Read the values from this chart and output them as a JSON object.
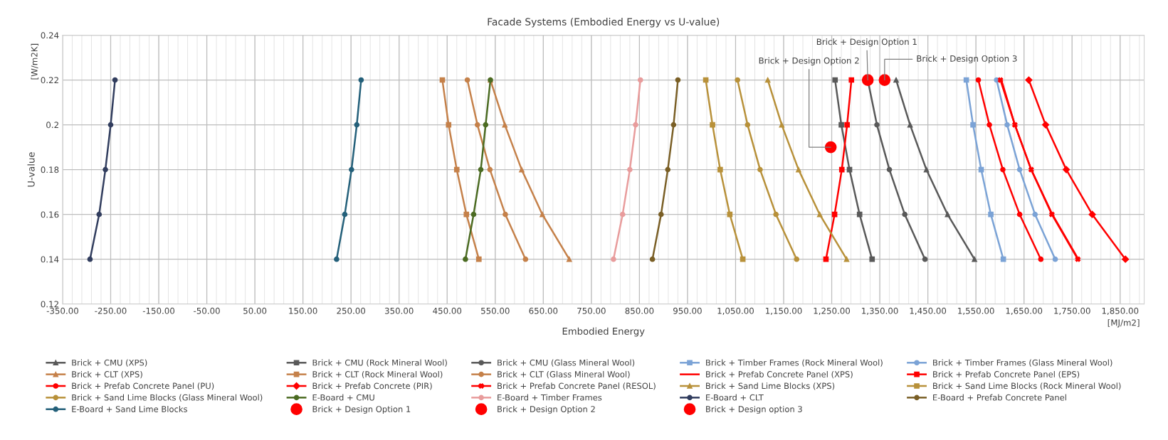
{
  "chart_data": {
    "type": "line",
    "title": "Facade Systems (Embodied Energy vs U-value)",
    "xlabel": "Embodied Energy",
    "ylabel": "U-value",
    "xlim": [
      -350,
      1900
    ],
    "ylim": [
      0.12,
      0.24
    ],
    "xticks": [
      {
        "value": -350,
        "label": "-350.00"
      },
      {
        "value": -250,
        "label": "-250.00"
      },
      {
        "value": -150,
        "label": "-150.00"
      },
      {
        "value": -50,
        "label": "-50.00"
      },
      {
        "value": 50,
        "label": "50.00"
      },
      {
        "value": 150,
        "label": "150.00"
      },
      {
        "value": 250,
        "label": "250.00"
      },
      {
        "value": 350,
        "label": "350.00"
      },
      {
        "value": 450,
        "label": "450.00"
      },
      {
        "value": 550,
        "label": "550.00"
      },
      {
        "value": 650,
        "label": "650.00"
      },
      {
        "value": 750,
        "label": "750.00"
      },
      {
        "value": 850,
        "label": "850.00"
      },
      {
        "value": 950,
        "label": "950.00"
      },
      {
        "value": 1050,
        "label": "1,050.00"
      },
      {
        "value": 1150,
        "label": "1,150.00"
      },
      {
        "value": 1250,
        "label": "1,250.00"
      },
      {
        "value": 1350,
        "label": "1,350.00"
      },
      {
        "value": 1450,
        "label": "1,450.00"
      },
      {
        "value": 1550,
        "label": "1,550.00"
      },
      {
        "value": 1650,
        "label": "1,650.00"
      },
      {
        "value": 1750,
        "label": "1,750.00"
      },
      {
        "value": 1850,
        "label": "1,850.00"
      }
    ],
    "yticks": [
      0.12,
      0.14,
      0.16,
      0.18,
      0.2,
      0.22,
      0.24
    ],
    "grid": true,
    "legend": "bottom",
    "annotations": [
      "[W/m2K]",
      "[MJ/m2]",
      {
        "text": "Brick + Design Option 1",
        "x": 1325,
        "y": 0.22
      },
      {
        "text": "Brick + Design Option 2",
        "x": 1248,
        "y": 0.19
      },
      {
        "text": "Brick + Design Option 3",
        "x": 1360,
        "y": 0.22
      }
    ],
    "series": [
      {
        "name": "Brick + CMU (XPS)",
        "color": "#595959",
        "marker": "triangle",
        "x": [
          1384,
          1413,
          1447,
          1491,
          1547
        ],
        "values": [
          0.22,
          0.2,
          0.18,
          0.16,
          0.14
        ]
      },
      {
        "name": "Brick + CMU (Rock Mineral Wool)",
        "color": "#595959",
        "marker": "square",
        "x": [
          1257,
          1270,
          1287,
          1308,
          1334
        ],
        "values": [
          0.22,
          0.2,
          0.18,
          0.16,
          0.14
        ]
      },
      {
        "name": "Brick + CMU (Glass Mineral Wool)",
        "color": "#595959",
        "marker": "circle",
        "x": [
          1325,
          1344,
          1370,
          1402,
          1444
        ],
        "values": [
          0.22,
          0.2,
          0.18,
          0.16,
          0.14
        ]
      },
      {
        "name": "Brick + Timber Frames (Rock Mineral Wool)",
        "color": "#7ba3d6",
        "marker": "square",
        "x": [
          1530,
          1544,
          1561,
          1581,
          1607
        ],
        "values": [
          0.22,
          0.2,
          0.18,
          0.16,
          0.14
        ]
      },
      {
        "name": "Brick + Timber Frames (Glass Mineral Wool)",
        "color": "#7ba3d6",
        "marker": "circle",
        "x": [
          1593,
          1615,
          1641,
          1673,
          1715
        ],
        "values": [
          0.22,
          0.2,
          0.18,
          0.16,
          0.14
        ]
      },
      {
        "name": "Brick + CLT (XPS)",
        "color": "#c5814a",
        "marker": "triangle",
        "x": [
          540,
          570,
          605,
          648,
          704
        ],
        "values": [
          0.22,
          0.2,
          0.18,
          0.16,
          0.14
        ]
      },
      {
        "name": "Brick + CLT (Rock Mineral Wool)",
        "color": "#c5814a",
        "marker": "square",
        "x": [
          440,
          453,
          470,
          490,
          516
        ],
        "values": [
          0.22,
          0.2,
          0.18,
          0.16,
          0.14
        ]
      },
      {
        "name": "Brick + CLT (Glass Mineral Wool)",
        "color": "#c5814a",
        "marker": "circle",
        "x": [
          492,
          513,
          539,
          571,
          613
        ],
        "values": [
          0.22,
          0.2,
          0.18,
          0.16,
          0.14
        ]
      },
      {
        "name": "Brick + Prefab Concrete Panel (XPS)",
        "color": "#ff0000",
        "marker": "none",
        "x": [
          1603,
          1631,
          1665,
          1709,
          1763
        ],
        "values": [
          0.22,
          0.2,
          0.18,
          0.16,
          0.14
        ]
      },
      {
        "name": "Brick + Prefab Concrete Panel (EPS)",
        "color": "#ff0000",
        "marker": "square",
        "x": [
          1291,
          1282,
          1271,
          1256,
          1238
        ],
        "values": [
          0.22,
          0.2,
          0.18,
          0.16,
          0.14
        ]
      },
      {
        "name": "Brick + Prefab Concrete Panel (PU)",
        "color": "#ff0000",
        "marker": "circle",
        "x": [
          1555,
          1578,
          1606,
          1641,
          1685
        ],
        "values": [
          0.22,
          0.2,
          0.18,
          0.16,
          0.14
        ]
      },
      {
        "name": "Brick + Prefab Concrete (PIR)",
        "color": "#ff0000",
        "marker": "diamond",
        "x": [
          1660,
          1695,
          1738,
          1792,
          1861
        ],
        "values": [
          0.22,
          0.2,
          0.18,
          0.16,
          0.14
        ]
      },
      {
        "name": "Brick + Prefab Concrete Panel (RESOL)",
        "color": "#ff0000",
        "marker": "cross",
        "x": [
          1601,
          1631,
          1665,
          1708,
          1762
        ],
        "values": [
          0.22,
          0.2,
          0.18,
          0.16,
          0.14
        ]
      },
      {
        "name": "Brick + Sand Lime Blocks (XPS)",
        "color": "#b8913a",
        "marker": "triangle",
        "x": [
          1117,
          1146,
          1181,
          1225,
          1281
        ],
        "values": [
          0.22,
          0.2,
          0.18,
          0.16,
          0.14
        ]
      },
      {
        "name": "Brick + Sand Lime Blocks (Rock Mineral Wool)",
        "color": "#b8913a",
        "marker": "square",
        "x": [
          988,
          1002,
          1018,
          1038,
          1065
        ],
        "values": [
          0.22,
          0.2,
          0.18,
          0.16,
          0.14
        ]
      },
      {
        "name": "Brick + Sand Lime Blocks (Glass Mineral Wool)",
        "color": "#b8913a",
        "marker": "circle",
        "x": [
          1054,
          1075,
          1101,
          1134,
          1177
        ],
        "values": [
          0.22,
          0.2,
          0.18,
          0.16,
          0.14
        ]
      },
      {
        "name": "E-Board + CMU",
        "color": "#4b6b22",
        "marker": "circle",
        "x": [
          540,
          530,
          520,
          505,
          488
        ],
        "values": [
          0.22,
          0.2,
          0.18,
          0.16,
          0.14
        ]
      },
      {
        "name": "E-Board + Timber Frames",
        "color": "#e89c9c",
        "marker": "circle",
        "x": [
          852,
          842,
          830,
          815,
          796
        ],
        "values": [
          0.22,
          0.2,
          0.18,
          0.16,
          0.14
        ]
      },
      {
        "name": "E-Board + CLT",
        "color": "#313d5e",
        "marker": "circle",
        "x": [
          -241,
          -250,
          -261,
          -274,
          -293
        ],
        "values": [
          0.22,
          0.2,
          0.18,
          0.16,
          0.14
        ]
      },
      {
        "name": "E-Board + Prefab Concrete Panel",
        "color": "#7a5f26",
        "marker": "circle",
        "x": [
          930,
          921,
          909,
          895,
          877
        ],
        "values": [
          0.22,
          0.2,
          0.18,
          0.16,
          0.14
        ]
      },
      {
        "name": "E-Board + Sand Lime Blocks",
        "color": "#24607a",
        "marker": "circle",
        "x": [
          271,
          262,
          251,
          237,
          220
        ],
        "values": [
          0.22,
          0.2,
          0.18,
          0.16,
          0.14
        ]
      },
      {
        "name": "Brick + Design Option 1",
        "type": "scatter",
        "color": "#ff0000",
        "marker": "circle",
        "x": [
          1325
        ],
        "values": [
          0.22
        ]
      },
      {
        "name": "Brick + Design Option 2",
        "type": "scatter",
        "color": "#ff0000",
        "marker": "circle",
        "x": [
          1248
        ],
        "values": [
          0.19
        ]
      },
      {
        "name": "Brick + Design option 3",
        "type": "scatter",
        "color": "#ff0000",
        "marker": "circle",
        "x": [
          1360
        ],
        "values": [
          0.22
        ]
      }
    ]
  }
}
